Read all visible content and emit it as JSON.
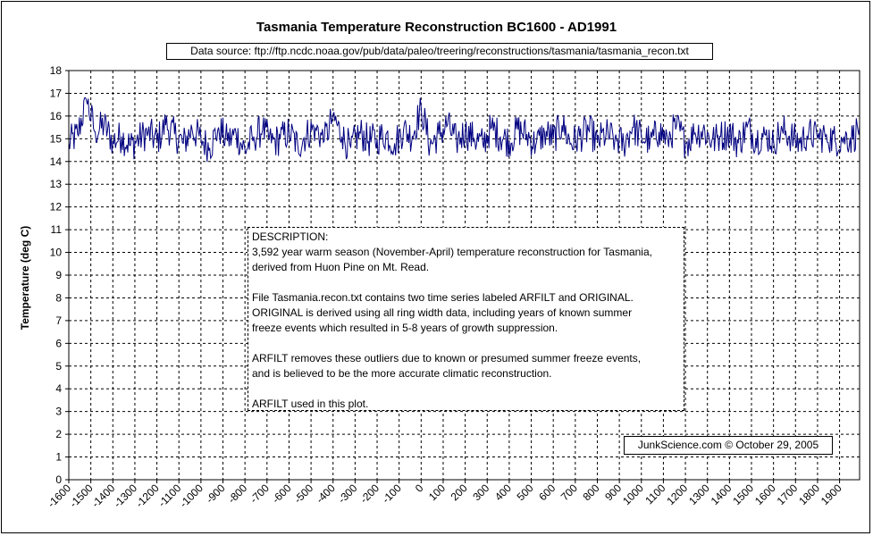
{
  "chart_data": {
    "type": "line",
    "title": "Tasmania Temperature Reconstruction BC1600 - AD1991",
    "source_text": "Data source: ftp://ftp.ncdc.noaa.gov/pub/data/paleo/treering/reconstructions/tasmania/tasmania_recon.txt",
    "xlabel": "",
    "ylabel": "Temperature (deg C)",
    "xlim": [
      -1600,
      1991
    ],
    "ylim": [
      0,
      18
    ],
    "x_ticks": [
      -1600,
      -1500,
      -1400,
      -1300,
      -1200,
      -1100,
      -1000,
      -900,
      -800,
      -700,
      -600,
      -500,
      -400,
      -300,
      -200,
      -100,
      0,
      100,
      200,
      300,
      400,
      500,
      600,
      700,
      800,
      900,
      1000,
      1100,
      1200,
      1300,
      1400,
      1500,
      1600,
      1700,
      1800,
      1900
    ],
    "y_ticks": [
      0,
      1,
      2,
      3,
      4,
      5,
      6,
      7,
      8,
      9,
      10,
      11,
      12,
      13,
      14,
      15,
      16,
      17,
      18
    ],
    "grid": true,
    "series": [
      {
        "name": "ARFILT",
        "color": "#000080",
        "note": "annual values; approximate envelope mean 15.0, range ~13.5-16.7",
        "x": [
          -1600,
          -1560,
          -1520,
          -1480,
          -1440,
          -1400,
          -1360,
          -1320,
          -1280,
          -1240,
          -1200,
          -1160,
          -1120,
          -1080,
          -1040,
          -1000,
          -960,
          -920,
          -880,
          -840,
          -800,
          -760,
          -720,
          -680,
          -640,
          -600,
          -560,
          -520,
          -480,
          -440,
          -400,
          -360,
          -320,
          -280,
          -240,
          -200,
          -160,
          -120,
          -80,
          -40,
          0,
          40,
          80,
          120,
          160,
          200,
          240,
          280,
          320,
          360,
          400,
          440,
          480,
          520,
          560,
          600,
          640,
          680,
          720,
          760,
          800,
          840,
          880,
          920,
          960,
          1000,
          1040,
          1080,
          1120,
          1160,
          1200,
          1240,
          1280,
          1320,
          1360,
          1400,
          1440,
          1480,
          1520,
          1560,
          1600,
          1640,
          1680,
          1720,
          1760,
          1800,
          1840,
          1880,
          1920,
          1960,
          1991
        ],
        "values": [
          14.8,
          15.2,
          16.7,
          15.3,
          15.6,
          14.9,
          15.1,
          14.7,
          15.0,
          15.3,
          14.9,
          15.6,
          15.2,
          14.8,
          15.4,
          15.0,
          14.6,
          15.5,
          14.9,
          15.2,
          14.5,
          15.1,
          15.4,
          14.8,
          15.0,
          15.3,
          14.7,
          15.2,
          15.5,
          14.9,
          16.0,
          15.1,
          14.6,
          15.3,
          14.9,
          15.0,
          15.2,
          14.8,
          15.4,
          15.1,
          16.4,
          14.7,
          15.2,
          15.6,
          14.9,
          15.3,
          15.0,
          14.8,
          15.5,
          15.1,
          14.9,
          15.4,
          15.2,
          14.7,
          15.3,
          15.0,
          15.6,
          14.8,
          15.1,
          15.4,
          14.9,
          15.2,
          15.0,
          14.8,
          15.5,
          15.1,
          14.9,
          15.3,
          15.0,
          15.6,
          14.8,
          15.2,
          15.4,
          14.9,
          15.1,
          15.3,
          14.8,
          15.5,
          15.0,
          15.2,
          14.9,
          15.4,
          15.1,
          14.8,
          15.3,
          15.0,
          15.2,
          14.9,
          15.1,
          15.0,
          15.6
        ]
      }
    ]
  },
  "description": {
    "lines": [
      "DESCRIPTION:",
      "3,592 year warm season (November-April) temperature reconstruction for Tasmania,",
      "derived from Huon Pine on Mt. Read.",
      "",
      "File Tasmania.recon.txt contains two time series labeled ARFILT and ORIGINAL.",
      "ORIGINAL is derived using all ring width data, including years of known summer",
      "freeze events which resulted in 5-8 years of growth suppression.",
      "",
      "ARFILT removes these outliers due to known or presumed summer freeze events,",
      "and is believed to be the more accurate climatic reconstruction.",
      "",
      "ARFILT used in this plot."
    ]
  },
  "credit": "JunkScience.com ©  October 29, 2005"
}
